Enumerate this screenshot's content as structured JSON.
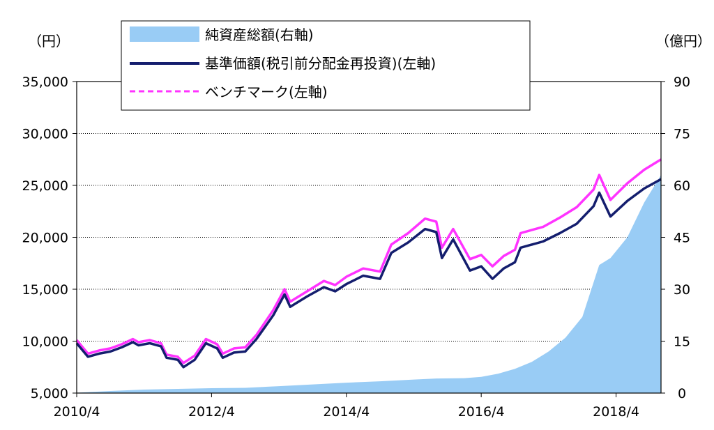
{
  "chart_data": {
    "type": "area+line",
    "left_unit": "（円）",
    "right_unit": "（億円）",
    "x_ticks": [
      "2010/4",
      "2012/4",
      "2014/4",
      "2016/4",
      "2018/4"
    ],
    "xlim": [
      "2010-04",
      "2018-12"
    ],
    "left_ylim": [
      5000,
      35000
    ],
    "left_ticks": [
      "5,000",
      "10,000",
      "15,000",
      "20,000",
      "25,000",
      "30,000",
      "35,000"
    ],
    "right_ylim": [
      0,
      90
    ],
    "right_ticks": [
      "0",
      "15",
      "30",
      "45",
      "60",
      "75",
      "90"
    ],
    "grid": "horizontal-dotted",
    "legend_position": "top-left",
    "colors": {
      "area": "#99ccf5",
      "nav": "#141e6e",
      "benchmark": "#ff33ff"
    },
    "series": [
      {
        "name": "純資産総額(右軸)",
        "axis": "right",
        "kind": "area",
        "points": [
          [
            "2010-04",
            0.1
          ],
          [
            "2010-10",
            0.6
          ],
          [
            "2011-04",
            1.0
          ],
          [
            "2011-10",
            1.2
          ],
          [
            "2012-04",
            1.4
          ],
          [
            "2012-10",
            1.5
          ],
          [
            "2013-04",
            2.0
          ],
          [
            "2013-10",
            2.5
          ],
          [
            "2014-04",
            3.0
          ],
          [
            "2014-10",
            3.4
          ],
          [
            "2015-04",
            3.9
          ],
          [
            "2015-08",
            4.2
          ],
          [
            "2016-01",
            4.3
          ],
          [
            "2016-04",
            4.7
          ],
          [
            "2016-07",
            5.6
          ],
          [
            "2016-10",
            7.0
          ],
          [
            "2017-01",
            9.0
          ],
          [
            "2017-04",
            12.0
          ],
          [
            "2017-07",
            16.0
          ],
          [
            "2017-10",
            22.0
          ],
          [
            "2018-01",
            37.0
          ],
          [
            "2018-03",
            39.0
          ],
          [
            "2018-06",
            45.0
          ],
          [
            "2018-09",
            55.0
          ],
          [
            "2018-12",
            63.0
          ]
        ]
      },
      {
        "name": "基準価額(税引前分配金再投資)(左軸)",
        "axis": "left",
        "kind": "line",
        "points": [
          [
            "2010-04",
            9800
          ],
          [
            "2010-06",
            8500
          ],
          [
            "2010-08",
            8800
          ],
          [
            "2010-10",
            9000
          ],
          [
            "2010-12",
            9400
          ],
          [
            "2011-02",
            9900
          ],
          [
            "2011-03",
            9600
          ],
          [
            "2011-05",
            9800
          ],
          [
            "2011-07",
            9500
          ],
          [
            "2011-08",
            8400
          ],
          [
            "2011-10",
            8200
          ],
          [
            "2011-11",
            7500
          ],
          [
            "2012-01",
            8200
          ],
          [
            "2012-03",
            9800
          ],
          [
            "2012-05",
            9300
          ],
          [
            "2012-06",
            8400
          ],
          [
            "2012-08",
            8900
          ],
          [
            "2012-10",
            9000
          ],
          [
            "2012-12",
            10200
          ],
          [
            "2013-03",
            12500
          ],
          [
            "2013-05",
            14500
          ],
          [
            "2013-06",
            13300
          ],
          [
            "2013-09",
            14300
          ],
          [
            "2013-12",
            15200
          ],
          [
            "2014-02",
            14800
          ],
          [
            "2014-04",
            15500
          ],
          [
            "2014-07",
            16300
          ],
          [
            "2014-10",
            16000
          ],
          [
            "2014-12",
            18500
          ],
          [
            "2015-03",
            19500
          ],
          [
            "2015-06",
            20800
          ],
          [
            "2015-08",
            20500
          ],
          [
            "2015-09",
            18000
          ],
          [
            "2015-11",
            19800
          ],
          [
            "2016-02",
            16800
          ],
          [
            "2016-04",
            17200
          ],
          [
            "2016-06",
            16000
          ],
          [
            "2016-08",
            17000
          ],
          [
            "2016-10",
            17600
          ],
          [
            "2016-11",
            19000
          ],
          [
            "2017-03",
            19600
          ],
          [
            "2017-06",
            20400
          ],
          [
            "2017-09",
            21300
          ],
          [
            "2017-12",
            23000
          ],
          [
            "2018-01",
            24300
          ],
          [
            "2018-03",
            22000
          ],
          [
            "2018-06",
            23500
          ],
          [
            "2018-09",
            24700
          ],
          [
            "2018-12",
            25600
          ]
        ]
      },
      {
        "name": "ベンチマーク(左軸)",
        "axis": "left",
        "kind": "line",
        "points": [
          [
            "2010-04",
            10100
          ],
          [
            "2010-06",
            8800
          ],
          [
            "2010-08",
            9100
          ],
          [
            "2010-10",
            9300
          ],
          [
            "2010-12",
            9700
          ],
          [
            "2011-02",
            10200
          ],
          [
            "2011-03",
            9900
          ],
          [
            "2011-05",
            10100
          ],
          [
            "2011-07",
            9800
          ],
          [
            "2011-08",
            8700
          ],
          [
            "2011-10",
            8500
          ],
          [
            "2011-11",
            7900
          ],
          [
            "2012-01",
            8600
          ],
          [
            "2012-03",
            10200
          ],
          [
            "2012-05",
            9700
          ],
          [
            "2012-06",
            8800
          ],
          [
            "2012-08",
            9300
          ],
          [
            "2012-10",
            9400
          ],
          [
            "2012-12",
            10600
          ],
          [
            "2013-03",
            13000
          ],
          [
            "2013-05",
            15000
          ],
          [
            "2013-06",
            13800
          ],
          [
            "2013-09",
            14800
          ],
          [
            "2013-12",
            15800
          ],
          [
            "2014-02",
            15400
          ],
          [
            "2014-04",
            16200
          ],
          [
            "2014-07",
            17000
          ],
          [
            "2014-10",
            16700
          ],
          [
            "2014-12",
            19300
          ],
          [
            "2015-03",
            20400
          ],
          [
            "2015-06",
            21800
          ],
          [
            "2015-08",
            21500
          ],
          [
            "2015-09",
            19000
          ],
          [
            "2015-11",
            20800
          ],
          [
            "2016-02",
            17900
          ],
          [
            "2016-04",
            18300
          ],
          [
            "2016-06",
            17200
          ],
          [
            "2016-08",
            18200
          ],
          [
            "2016-10",
            18800
          ],
          [
            "2016-11",
            20400
          ],
          [
            "2017-03",
            21000
          ],
          [
            "2017-06",
            21900
          ],
          [
            "2017-09",
            22900
          ],
          [
            "2017-12",
            24600
          ],
          [
            "2018-01",
            26000
          ],
          [
            "2018-03",
            23600
          ],
          [
            "2018-06",
            25200
          ],
          [
            "2018-09",
            26500
          ],
          [
            "2018-12",
            27500
          ]
        ]
      }
    ]
  }
}
